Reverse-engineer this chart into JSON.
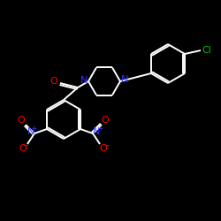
{
  "bg_color": "#000000",
  "bond_color": "#ffffff",
  "N_color": "#3333ff",
  "O_color": "#ff0000",
  "Cl_color": "#00bb00",
  "lw": 1.4,
  "fig_size": [
    2.5,
    2.5
  ],
  "dpi": 100,
  "xlim": [
    0,
    250
  ],
  "ylim": [
    0,
    250
  ]
}
